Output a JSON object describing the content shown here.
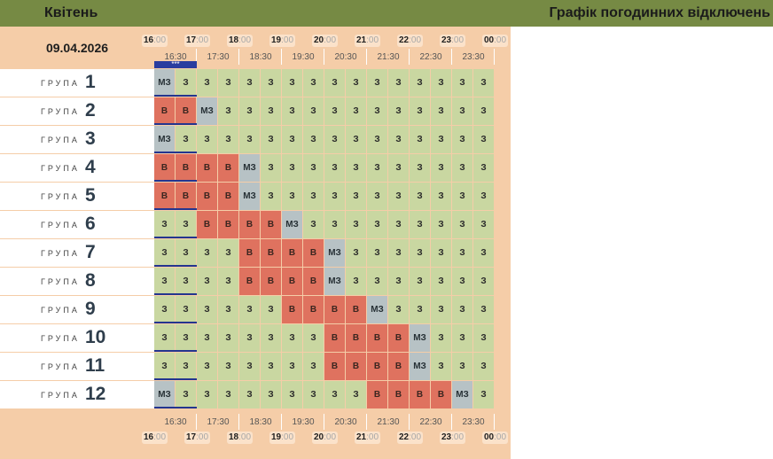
{
  "header": {
    "month": "Квітень",
    "title": "Графік погодинних відключень"
  },
  "date": "09.04.2026",
  "hours": [
    "16",
    "17",
    "18",
    "19",
    "20",
    "21",
    "22",
    "23",
    "00"
  ],
  "hour_suffix": ":00",
  "half_hours": [
    "16:30",
    "17:30",
    "18:30",
    "19:30",
    "20:30",
    "21:30",
    "22:30",
    "23:30"
  ],
  "now_marker": "***",
  "group_word": "ГРУПА",
  "groups": [
    {
      "num": "1",
      "cells": [
        "МЗ",
        "З",
        "З",
        "З",
        "З",
        "З",
        "З",
        "З",
        "З",
        "З",
        "З",
        "З",
        "З",
        "З",
        "З",
        "З"
      ]
    },
    {
      "num": "2",
      "cells": [
        "В",
        "В",
        "МЗ",
        "З",
        "З",
        "З",
        "З",
        "З",
        "З",
        "З",
        "З",
        "З",
        "З",
        "З",
        "З",
        "З"
      ]
    },
    {
      "num": "3",
      "cells": [
        "МЗ",
        "З",
        "З",
        "З",
        "З",
        "З",
        "З",
        "З",
        "З",
        "З",
        "З",
        "З",
        "З",
        "З",
        "З",
        "З"
      ]
    },
    {
      "num": "4",
      "cells": [
        "В",
        "В",
        "В",
        "В",
        "МЗ",
        "З",
        "З",
        "З",
        "З",
        "З",
        "З",
        "З",
        "З",
        "З",
        "З",
        "З"
      ]
    },
    {
      "num": "5",
      "cells": [
        "В",
        "В",
        "В",
        "В",
        "МЗ",
        "З",
        "З",
        "З",
        "З",
        "З",
        "З",
        "З",
        "З",
        "З",
        "З",
        "З"
      ]
    },
    {
      "num": "6",
      "cells": [
        "З",
        "З",
        "В",
        "В",
        "В",
        "В",
        "МЗ",
        "З",
        "З",
        "З",
        "З",
        "З",
        "З",
        "З",
        "З",
        "З"
      ]
    },
    {
      "num": "7",
      "cells": [
        "З",
        "З",
        "З",
        "З",
        "В",
        "В",
        "В",
        "В",
        "МЗ",
        "З",
        "З",
        "З",
        "З",
        "З",
        "З",
        "З"
      ]
    },
    {
      "num": "8",
      "cells": [
        "З",
        "З",
        "З",
        "З",
        "В",
        "В",
        "В",
        "В",
        "МЗ",
        "З",
        "З",
        "З",
        "З",
        "З",
        "З",
        "З"
      ]
    },
    {
      "num": "9",
      "cells": [
        "З",
        "З",
        "З",
        "З",
        "З",
        "З",
        "В",
        "В",
        "В",
        "В",
        "МЗ",
        "З",
        "З",
        "З",
        "З",
        "З"
      ]
    },
    {
      "num": "10",
      "cells": [
        "З",
        "З",
        "З",
        "З",
        "З",
        "З",
        "З",
        "З",
        "В",
        "В",
        "В",
        "В",
        "МЗ",
        "З",
        "З",
        "З"
      ]
    },
    {
      "num": "11",
      "cells": [
        "З",
        "З",
        "З",
        "З",
        "З",
        "З",
        "З",
        "З",
        "В",
        "В",
        "В",
        "В",
        "МЗ",
        "З",
        "З",
        "З"
      ]
    },
    {
      "num": "12",
      "cells": [
        "МЗ",
        "З",
        "З",
        "З",
        "З",
        "З",
        "З",
        "З",
        "З",
        "З",
        "В",
        "В",
        "В",
        "В",
        "МЗ",
        "З"
      ]
    }
  ],
  "legend_colors": {
    "З": "#c9d7a1",
    "В": "#df725f",
    "МЗ": "#b7c2c5"
  }
}
